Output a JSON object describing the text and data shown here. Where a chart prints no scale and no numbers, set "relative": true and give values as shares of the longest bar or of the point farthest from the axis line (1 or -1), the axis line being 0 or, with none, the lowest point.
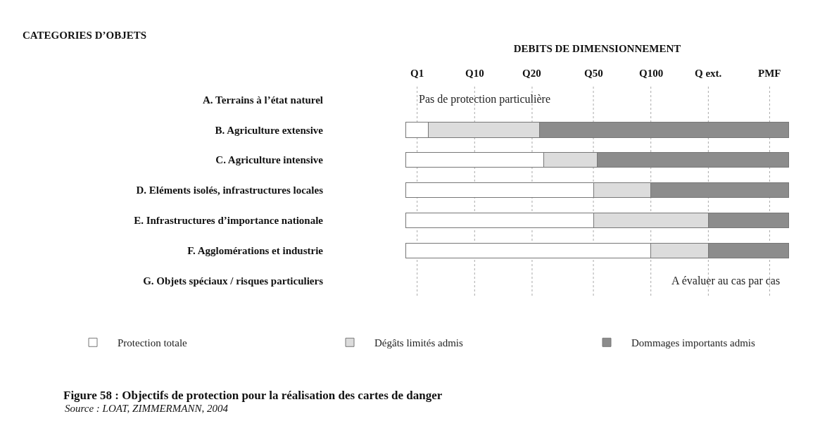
{
  "chart_data": {
    "type": "bar",
    "orientation": "horizontal",
    "relative": true,
    "title": "Figure 58 : Objectifs de protection pour la réalisation des cartes de danger",
    "xlabel": "DEBITS DE DIMENSIONNEMENT",
    "ylabel": "CATEGORIES D’OBJETS",
    "categories": [
      "A. Terrains à l’état naturel",
      "B. Agriculture extensive",
      "C. Agriculture intensive",
      "D. Eléments isolés, infrastructures locales",
      "E. Infrastructures d’importance nationale",
      "F. Agglomérations et industrie",
      "G. Objets spéciaux / risques particuliers"
    ],
    "series": [
      {
        "name": "Protection totale",
        "color": "#ffffff",
        "values": [
          null,
          0.06,
          0.36,
          0.49,
          0.49,
          0.64,
          null
        ]
      },
      {
        "name": "Dégâts limités admis",
        "color": "#dcdcdc",
        "values": [
          null,
          0.29,
          0.14,
          0.15,
          0.3,
          0.15,
          null
        ]
      },
      {
        "name": "Dommages importants admis",
        "color": "#8c8c8c",
        "values": [
          null,
          0.65,
          0.5,
          0.36,
          0.21,
          0.21,
          null
        ]
      }
    ],
    "stacked": true,
    "ref_lines": [
      {
        "axis": "x",
        "value": 0.03,
        "label": "Q1",
        "line_style": "dotted"
      },
      {
        "axis": "x",
        "value": 0.18,
        "label": "Q10",
        "line_style": "dotted"
      },
      {
        "axis": "x",
        "value": 0.33,
        "label": "Q20",
        "line_style": "dotted"
      },
      {
        "axis": "x",
        "value": 0.49,
        "label": "Q50",
        "line_style": "dotted"
      },
      {
        "axis": "x",
        "value": 0.64,
        "label": "Q100",
        "line_style": "dotted"
      },
      {
        "axis": "x",
        "value": 0.79,
        "label": "Q ext.",
        "line_style": "dotted"
      },
      {
        "axis": "x",
        "value": 0.95,
        "label": "PMF",
        "line_style": "dotted"
      }
    ],
    "legend": "bottom",
    "annotations": [
      "Pas de protection particulière",
      "A évaluer au cas par cas",
      "Source : LOAT, ZIMMERMANN, 2004"
    ]
  }
}
